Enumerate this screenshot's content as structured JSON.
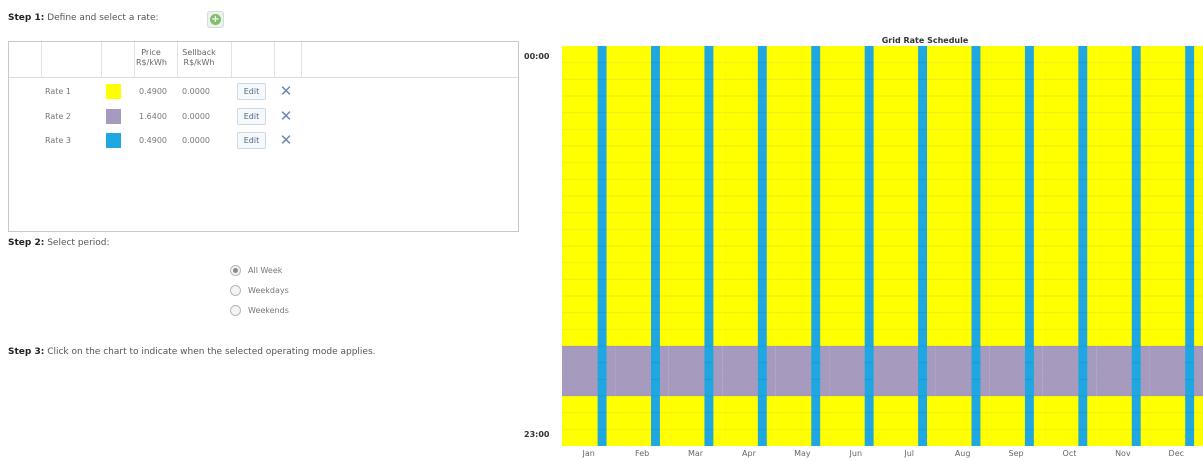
{
  "steps": {
    "step1_label": "Step 1:",
    "step1_text": " Define and select a rate:",
    "step2_label": "Step 2:",
    "step2_text": " Select period:",
    "step3_label": "Step 3:",
    "step3_text": " Click on the chart to indicate when the selected operating mode applies."
  },
  "table": {
    "price_header_1": "Price",
    "price_header_2": "R$/kWh",
    "sellback_header_1": "Sellback",
    "sellback_header_2": "R$/kWh",
    "edit_label": "Edit",
    "rates": [
      {
        "name": "Rate 1",
        "color": "#ffff00",
        "price": "0.4900",
        "sellback": "0.0000"
      },
      {
        "name": "Rate 2",
        "color": "#a69bbf",
        "price": "1.6400",
        "sellback": "0.0000"
      },
      {
        "name": "Rate 3",
        "color": "#1ea7e1",
        "price": "0.4900",
        "sellback": "0.0000"
      }
    ]
  },
  "period": {
    "options": [
      "All Week",
      "Weekdays",
      "Weekends"
    ],
    "selected": "All Week"
  },
  "chart": {
    "title": "Grid Rate Schedule",
    "y_top_label": "00:00",
    "y_bottom_label": "23:00",
    "months": [
      "Jan",
      "Feb",
      "Mar",
      "Apr",
      "May",
      "Jun",
      "Jul",
      "Aug",
      "Sep",
      "Oct",
      "Nov",
      "Dec"
    ],
    "hours": 24,
    "weekend_rate": "Rate 3",
    "default_rate": "Rate 1",
    "peak_rate": "Rate 2",
    "peak_hours": [
      18,
      19,
      20
    ]
  }
}
